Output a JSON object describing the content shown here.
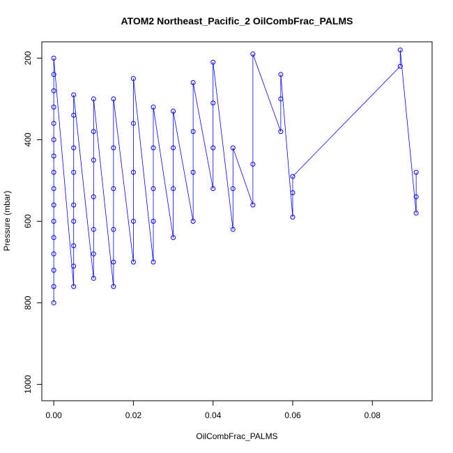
{
  "chart_data": {
    "type": "scatter",
    "title": "ATOM2 Northeast_Pacific_2 OilCombFrac_PALMS",
    "xlabel": "OilCombFrac_PALMS",
    "ylabel": "Pressure (mbar)",
    "xlim": [
      -0.003,
      0.095
    ],
    "ylim": [
      1040,
      160
    ],
    "y_reversed": true,
    "xticks": [
      0.0,
      0.02,
      0.04,
      0.06,
      0.08
    ],
    "xtick_labels": [
      "0.00",
      "0.02",
      "0.04",
      "0.06",
      "0.08"
    ],
    "yticks": [
      200,
      400,
      600,
      800,
      1000
    ],
    "ytick_labels": [
      "200",
      "400",
      "600",
      "800",
      "1000"
    ],
    "grid": false,
    "legend": "none",
    "marker": "open-circle",
    "color": "#0000ff",
    "series": [
      {
        "values": [
          [
            0.0,
            800
          ],
          [
            0.0,
            760
          ],
          [
            0.0,
            720
          ],
          [
            0.0,
            680
          ],
          [
            0.0,
            640
          ],
          [
            0.0,
            600
          ],
          [
            0.0,
            560
          ],
          [
            0.0,
            520
          ],
          [
            0.0,
            480
          ],
          [
            0.0,
            440
          ],
          [
            0.0,
            400
          ],
          [
            0.0,
            360
          ],
          [
            0.0,
            320
          ],
          [
            0.0,
            280
          ],
          [
            0.0,
            240
          ],
          [
            0.0,
            200
          ],
          [
            0.005,
            760
          ],
          [
            0.005,
            710
          ],
          [
            0.005,
            660
          ],
          [
            0.005,
            600
          ],
          [
            0.005,
            560
          ],
          [
            0.005,
            480
          ],
          [
            0.005,
            420
          ],
          [
            0.005,
            340
          ],
          [
            0.005,
            290
          ],
          [
            0.01,
            740
          ],
          [
            0.01,
            680
          ],
          [
            0.01,
            620
          ],
          [
            0.01,
            540
          ],
          [
            0.01,
            450
          ],
          [
            0.01,
            380
          ],
          [
            0.01,
            300
          ],
          [
            0.015,
            760
          ],
          [
            0.015,
            700
          ],
          [
            0.015,
            620
          ],
          [
            0.015,
            520
          ],
          [
            0.015,
            420
          ],
          [
            0.015,
            300
          ],
          [
            0.02,
            700
          ],
          [
            0.02,
            600
          ],
          [
            0.02,
            480
          ],
          [
            0.02,
            360
          ],
          [
            0.02,
            250
          ],
          [
            0.025,
            700
          ],
          [
            0.025,
            600
          ],
          [
            0.025,
            520
          ],
          [
            0.025,
            420
          ],
          [
            0.025,
            320
          ],
          [
            0.03,
            640
          ],
          [
            0.03,
            520
          ],
          [
            0.03,
            420
          ],
          [
            0.03,
            330
          ],
          [
            0.035,
            600
          ],
          [
            0.035,
            480
          ],
          [
            0.035,
            380
          ],
          [
            0.035,
            260
          ],
          [
            0.04,
            520
          ],
          [
            0.04,
            420
          ],
          [
            0.04,
            310
          ],
          [
            0.04,
            210
          ],
          [
            0.045,
            620
          ],
          [
            0.045,
            520
          ],
          [
            0.045,
            420
          ],
          [
            0.05,
            560
          ],
          [
            0.05,
            460
          ],
          [
            0.05,
            190
          ],
          [
            0.057,
            380
          ],
          [
            0.057,
            300
          ],
          [
            0.057,
            240
          ],
          [
            0.06,
            590
          ],
          [
            0.06,
            530
          ],
          [
            0.06,
            490
          ],
          [
            0.087,
            220
          ],
          [
            0.087,
            180
          ],
          [
            0.091,
            580
          ],
          [
            0.091,
            540
          ],
          [
            0.091,
            480
          ]
        ]
      }
    ]
  }
}
